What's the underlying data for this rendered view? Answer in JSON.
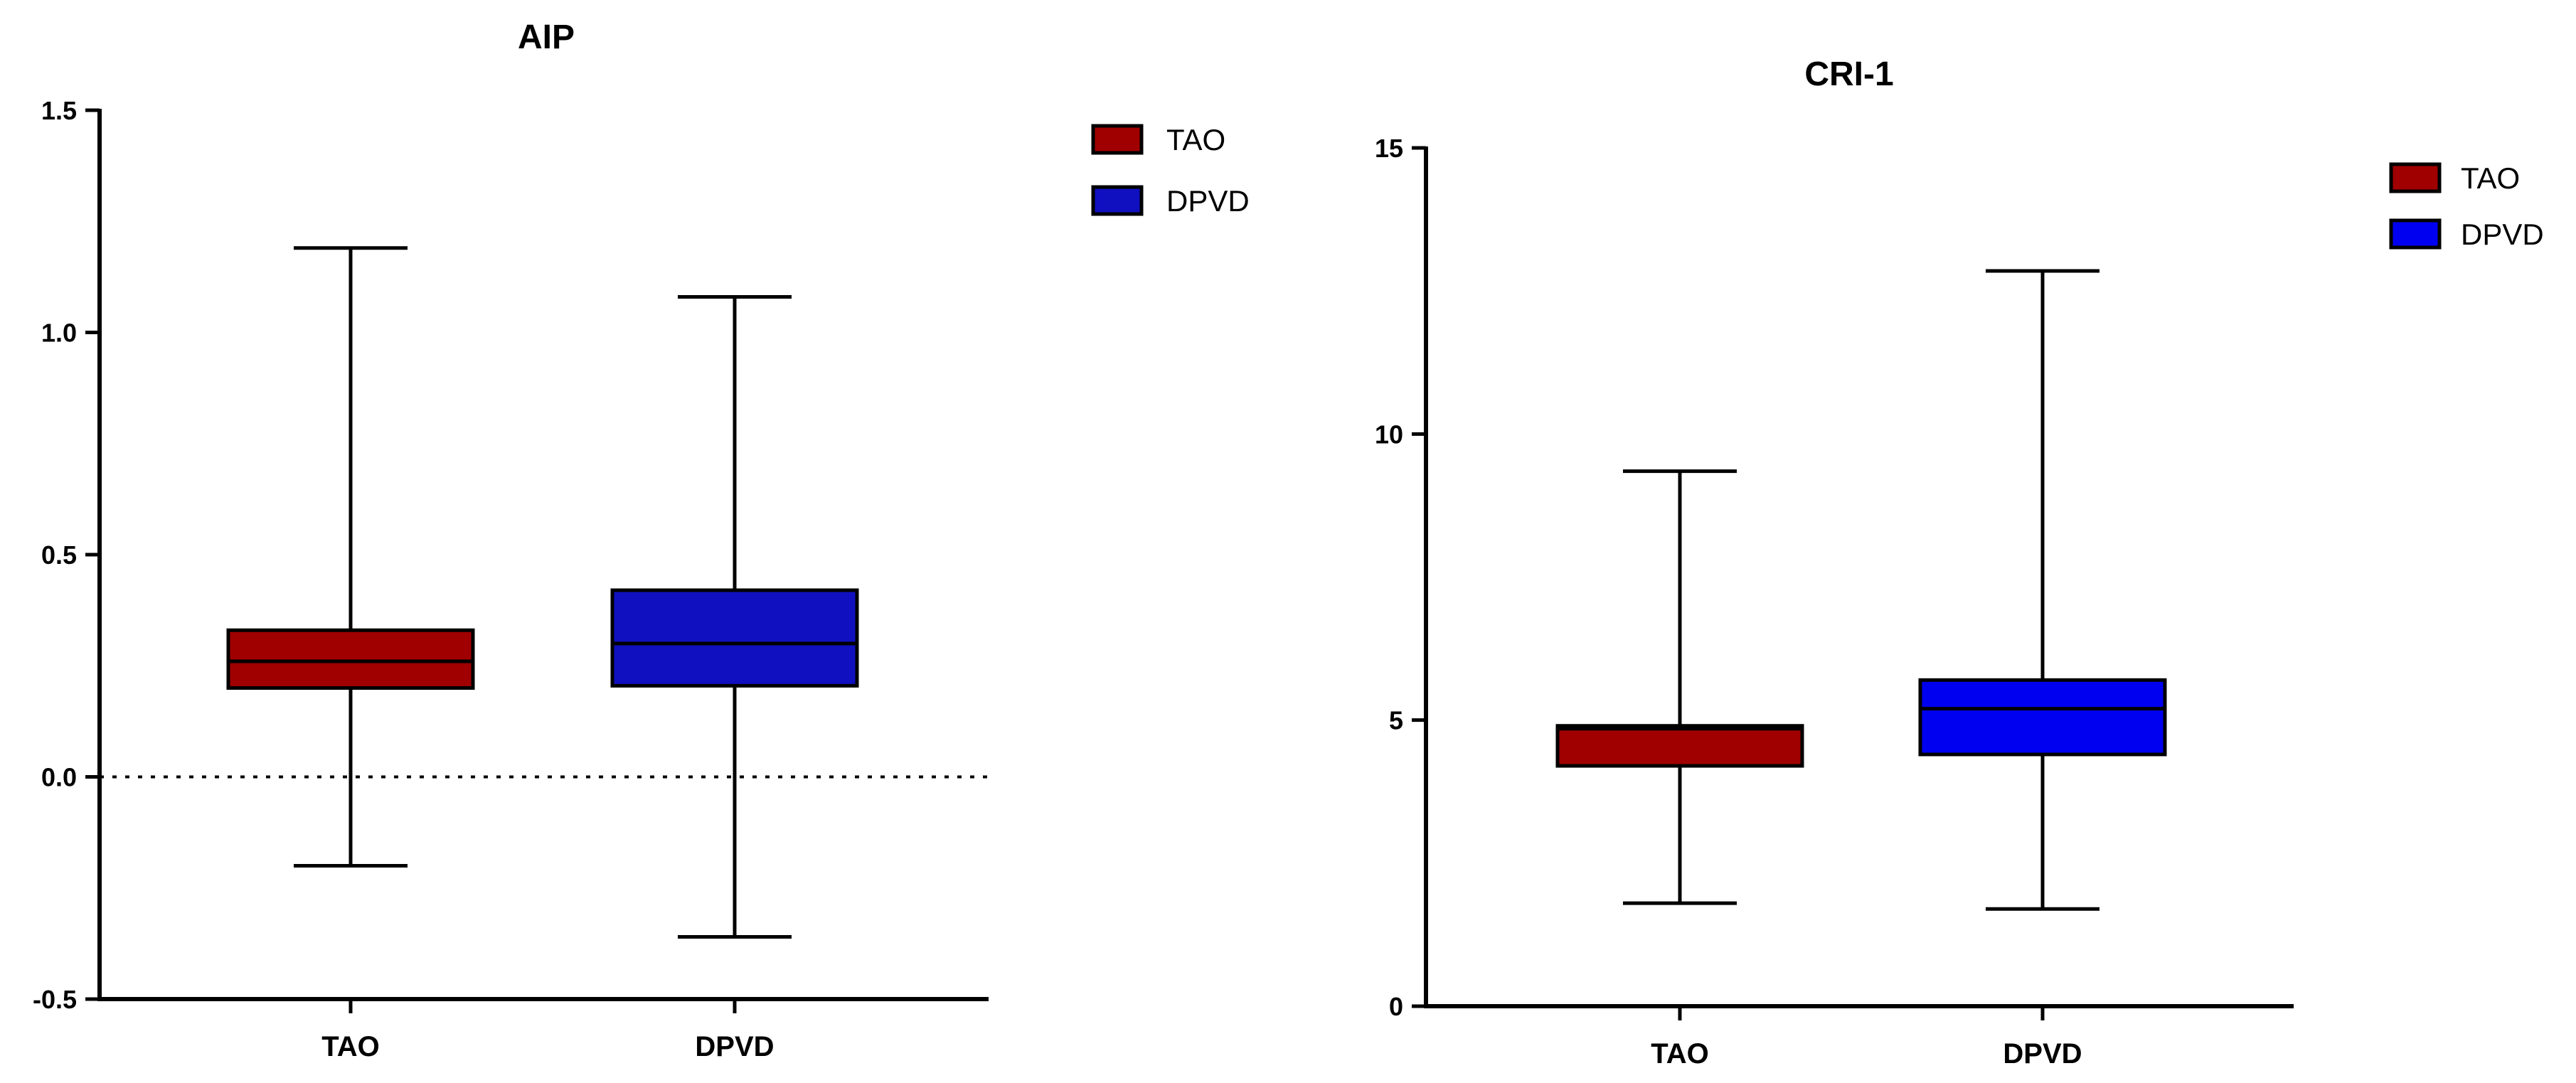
{
  "chart_data": [
    {
      "type": "box",
      "title": "AIP",
      "categories": [
        "TAO",
        "DPVD"
      ],
      "ylim": [
        -0.5,
        1.5
      ],
      "yticks": [
        "-0.5",
        "0.0",
        "0.5",
        "1.0",
        "1.5"
      ],
      "reference_line": 0.0,
      "series": [
        {
          "name": "TAO",
          "color": "#a00000",
          "min": -0.2,
          "q1": 0.2,
          "median": 0.26,
          "q3": 0.33,
          "max": 1.19
        },
        {
          "name": "DPVD",
          "color": "#1010c0",
          "min": -0.36,
          "q1": 0.205,
          "median": 0.3,
          "q3": 0.42,
          "max": 1.08
        }
      ],
      "legend": [
        "TAO",
        "DPVD"
      ],
      "legend_position": "top-right"
    },
    {
      "type": "box",
      "title": "CRI-1",
      "categories": [
        "TAO",
        "DPVD"
      ],
      "ylim": [
        0,
        15
      ],
      "yticks": [
        "0",
        "5",
        "10",
        "15"
      ],
      "series": [
        {
          "name": "TAO",
          "color": "#a00000",
          "min": 1.8,
          "q1": 4.2,
          "median": 4.85,
          "q3": 4.9,
          "max": 9.35
        },
        {
          "name": "DPVD",
          "color": "#0000f0",
          "min": 1.7,
          "q1": 4.4,
          "median": 5.2,
          "q3": 5.7,
          "max": 12.85
        }
      ],
      "legend": [
        "TAO",
        "DPVD"
      ],
      "legend_position": "top-right"
    }
  ]
}
